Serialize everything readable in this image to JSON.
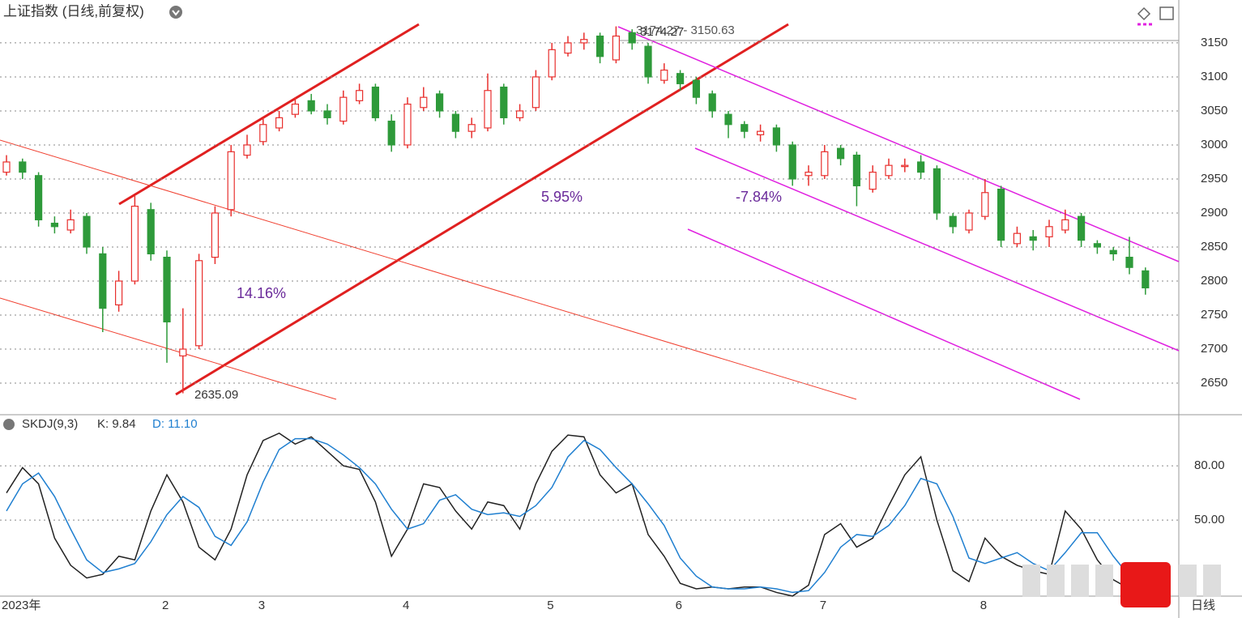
{
  "chart_data": [
    {
      "type": "candlestick",
      "title": "上证指数 (日线,前复权)",
      "categories": [
        "2023年",
        null,
        null,
        null,
        null,
        null,
        null,
        null,
        null,
        null,
        "2",
        null,
        null,
        null,
        null,
        null,
        "3",
        null,
        null,
        null,
        null,
        null,
        null,
        null,
        null,
        "4",
        null,
        null,
        null,
        null,
        null,
        null,
        null,
        null,
        "5",
        null,
        null,
        null,
        null,
        null,
        null,
        null,
        "6",
        null,
        null,
        null,
        null,
        null,
        null,
        null,
        null,
        "7",
        null,
        null,
        null,
        null,
        null,
        null,
        null,
        null,
        null,
        "8",
        null,
        null,
        null,
        null,
        null,
        null,
        null,
        null,
        null,
        null
      ],
      "open": [
        2960,
        2975,
        2955,
        2885,
        2875,
        2895,
        2840,
        2765,
        2800,
        2905,
        2835,
        2690,
        2705,
        2835,
        2905,
        2985,
        3005,
        3025,
        3045,
        3065,
        3050,
        3035,
        3065,
        3085,
        3035,
        3000,
        3055,
        3075,
        3045,
        3020,
        3025,
        3085,
        3040,
        3055,
        3100,
        3135,
        3150,
        3160,
        3125,
        3165,
        3145,
        3095,
        3105,
        3095,
        3075,
        3045,
        3030,
        3015,
        3025,
        3000,
        2955,
        2955,
        2995,
        2985,
        2935,
        2955,
        2970,
        2975,
        2965,
        2895,
        2875,
        2895,
        2935,
        2855,
        2865,
        2865,
        2875,
        2895,
        2855,
        2845,
        2835,
        2815
      ],
      "high": [
        2985,
        2980,
        2960,
        2895,
        2905,
        2900,
        2850,
        2815,
        2925,
        2915,
        2845,
        2760,
        2840,
        2910,
        3000,
        3015,
        3040,
        3050,
        3070,
        3075,
        3060,
        3080,
        3090,
        3090,
        3045,
        3070,
        3085,
        3080,
        3050,
        3040,
        3105,
        3090,
        3060,
        3110,
        3150,
        3160,
        3165,
        3165,
        3174.27,
        3170,
        3150,
        3120,
        3110,
        3100,
        3080,
        3050,
        3035,
        3030,
        3030,
        3005,
        2970,
        3000,
        3000,
        2990,
        2970,
        2980,
        2980,
        2985,
        2970,
        2900,
        2905,
        2950,
        2940,
        2880,
        2875,
        2890,
        2905,
        2900,
        2860,
        2850,
        2865,
        2820
      ],
      "low": [
        2955,
        2950,
        2880,
        2870,
        2870,
        2840,
        2725,
        2755,
        2795,
        2830,
        2680,
        2635.09,
        2700,
        2825,
        2895,
        2980,
        3000,
        3020,
        3040,
        3045,
        3030,
        3030,
        3060,
        3035,
        2990,
        2995,
        3050,
        3040,
        3010,
        3010,
        3020,
        3030,
        3035,
        3050,
        3095,
        3130,
        3140,
        3120,
        3120,
        3140,
        3090,
        3090,
        3080,
        3060,
        3040,
        3010,
        3010,
        3005,
        2990,
        2940,
        2940,
        2950,
        2970,
        2910,
        2930,
        2950,
        2960,
        2950,
        2890,
        2870,
        2870,
        2890,
        2850,
        2850,
        2845,
        2850,
        2870,
        2850,
        2840,
        2830,
        2810,
        2780
      ],
      "close": [
        2975,
        2960,
        2890,
        2880,
        2890,
        2850,
        2760,
        2800,
        2910,
        2840,
        2740,
        2700,
        2830,
        2900,
        2990,
        3000,
        3030,
        3040,
        3060,
        3050,
        3040,
        3070,
        3080,
        3040,
        3000,
        3060,
        3070,
        3050,
        3020,
        3030,
        3080,
        3040,
        3050,
        3100,
        3140,
        3150,
        3155,
        3130,
        3160,
        3150,
        3100,
        3110,
        3090,
        3070,
        3050,
        3030,
        3020,
        3020,
        3000,
        2950,
        2960,
        2990,
        2980,
        2940,
        2960,
        2970,
        2970,
        2960,
        2900,
        2880,
        2900,
        2930,
        2860,
        2870,
        2860,
        2880,
        2890,
        2860,
        2850,
        2840,
        2820,
        2790
      ],
      "up_color": "#e8302e",
      "down_color": "#2e9a3a",
      "ylim": [
        2606,
        3213
      ],
      "yticks": [
        2650,
        2700,
        2750,
        2800,
        2850,
        2900,
        2950,
        3000,
        3050,
        3100,
        3150
      ],
      "grid": true,
      "annotations": [
        "2635.09",
        "3174.27 - 3150.63",
        "3174.27",
        "14.16%",
        "5.95%",
        "-7.84%"
      ],
      "period_label": "日线"
    },
    {
      "type": "line",
      "title": "SKDJ(9,3)",
      "k_label": "K: 9.84",
      "d_label": "D: 11.10",
      "series": [
        {
          "name": "K",
          "color": "#222222",
          "values": [
            65,
            79,
            70,
            40,
            25,
            18,
            20,
            30,
            28,
            55,
            75,
            60,
            35,
            28,
            45,
            75,
            94,
            98,
            92,
            96,
            88,
            80,
            78,
            60,
            30,
            45,
            70,
            68,
            55,
            45,
            60,
            58,
            45,
            70,
            88,
            97,
            96,
            75,
            65,
            70,
            42,
            30,
            15,
            12,
            13,
            12,
            13,
            13,
            10,
            8,
            14,
            42,
            48,
            35,
            40,
            58,
            75,
            85,
            50,
            22,
            16,
            40,
            30,
            25,
            22,
            20,
            55,
            45,
            28,
            17,
            12,
            9.84
          ]
        },
        {
          "name": "D",
          "color": "#1f7fd0",
          "values": [
            55,
            70,
            76,
            63,
            45,
            28,
            21,
            23,
            26,
            38,
            53,
            63,
            57,
            41,
            36,
            49,
            71,
            89,
            95,
            95,
            92,
            86,
            79,
            70,
            56,
            45,
            48,
            61,
            64,
            56,
            53,
            54,
            52,
            58,
            68,
            85,
            94,
            89,
            79,
            70,
            59,
            47,
            29,
            19,
            13,
            12,
            12,
            13,
            12,
            10,
            11,
            21,
            35,
            42,
            41,
            47,
            58,
            73,
            70,
            52,
            29,
            26,
            29,
            32,
            26,
            22,
            32,
            43,
            43,
            30,
            19,
            11.1
          ]
        }
      ],
      "ylim": [
        8.4,
        106.9
      ],
      "yticks": [
        {
          "value": 80,
          "label": "80.00"
        },
        {
          "value": 50,
          "label": "50.00"
        }
      ],
      "grid": true
    }
  ]
}
